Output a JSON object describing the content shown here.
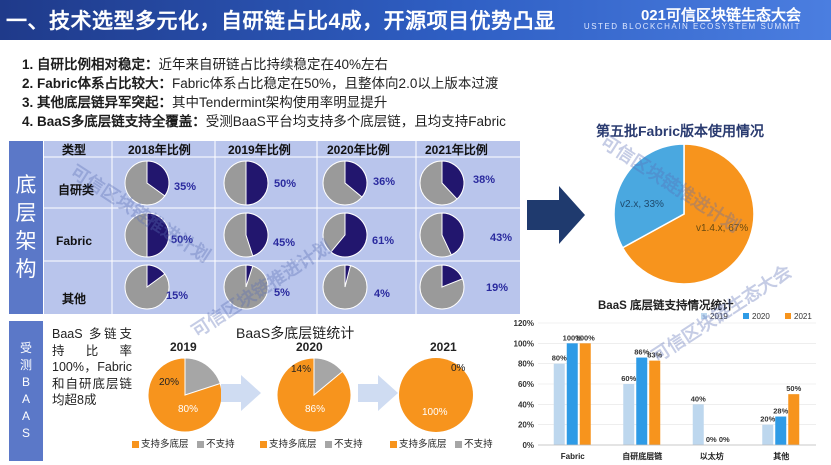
{
  "header": {
    "title": "一、技术选型多元化，自研链占比4成，开源项目优势凸显",
    "brand": "021可信区块链生态大会",
    "brand_en": "USTED BLOCKCHAIN ECOSYSTEM SUMMIT"
  },
  "bullets": [
    {
      "key": "1. 自研比例相对稳定：",
      "text": "近年来自研链占比持续稳定在40%左右"
    },
    {
      "key": "2. Fabric体系占比较大：",
      "text": "Fabric体系占比稳定在50%，且整体向2.0以上版本过渡"
    },
    {
      "key": "3. 其他底层链异军突起：",
      "text": "其中Tendermint架构使用率明显提升"
    },
    {
      "key": "4. BaaS多底层链支持全覆盖：",
      "text": "受测BaaS平台均支持多个底层链，且均支持Fabric"
    }
  ],
  "arch": {
    "label": [
      "底",
      "层",
      "架",
      "构"
    ],
    "type_header": "类型",
    "columns": [
      "2018年比例",
      "2019年比例",
      "2020年比例",
      "2021年比例"
    ],
    "rows": [
      {
        "name": "自研类",
        "values": [
          "35%",
          "50%",
          "36%",
          "38%"
        ],
        "fractions": [
          0.35,
          0.5,
          0.36,
          0.38
        ]
      },
      {
        "name": "Fabric",
        "values": [
          "50%",
          "45%",
          "61%",
          "43%"
        ],
        "fractions": [
          0.5,
          0.45,
          0.61,
          0.43
        ]
      },
      {
        "name": "其他",
        "values": [
          "15%",
          "5%",
          "4%",
          "19%"
        ],
        "fractions": [
          0.15,
          0.05,
          0.04,
          0.19
        ]
      }
    ],
    "colors": {
      "fill": "#22166e",
      "rest": "#9a9a9a"
    }
  },
  "fabric_pie": {
    "title": "第五批Fabric版本使用情况",
    "slices": [
      {
        "label": "v1.4.x, 67%",
        "value": 67,
        "color": "#f7941d"
      },
      {
        "label": "v2.x, 33%",
        "value": 33,
        "color": "#4aa8e0"
      }
    ]
  },
  "baas": {
    "label": [
      "受",
      "测",
      "B",
      "A",
      "A",
      "S"
    ],
    "text": "BaaS 多链支持比率100%，Fabric和自研底层链均超8成",
    "title": "BaaS多底层链统计",
    "pies": [
      {
        "year": "2019",
        "support": 80,
        "no": 20,
        "support_label": "80%",
        "no_label": "20%"
      },
      {
        "year": "2020",
        "support": 86,
        "no": 14,
        "support_label": "86%",
        "no_label": "14%"
      },
      {
        "year": "2021",
        "support": 100,
        "no": 0,
        "support_label": "100%",
        "no_label": "0%"
      }
    ],
    "legend": {
      "support": "支持多底层",
      "no": "不支持"
    },
    "colors": {
      "support": "#f7941d",
      "no": "#a6a6a6"
    }
  },
  "chart_data": {
    "type": "bar",
    "title": "BaaS 底层链支持情况统计",
    "categories": [
      "Fabric",
      "自研底层链",
      "以太坊",
      "其他"
    ],
    "series": [
      {
        "name": "2019",
        "values": [
          80,
          60,
          40,
          20
        ],
        "labels": [
          "80%",
          "60%",
          "40%",
          "20%"
        ],
        "color": "#bdd7ee"
      },
      {
        "name": "2020",
        "values": [
          100,
          86,
          0,
          28
        ],
        "labels": [
          "100%",
          "86%",
          "0%",
          "28%"
        ],
        "color": "#2e9be6"
      },
      {
        "name": "2021",
        "values": [
          100,
          83,
          0,
          50
        ],
        "labels": [
          "100%",
          "83%",
          "0%",
          "50%"
        ],
        "color": "#f7941d"
      }
    ],
    "yticks": [
      "0%",
      "20%",
      "40%",
      "60%",
      "80%",
      "100%",
      "120%"
    ],
    "ylim": [
      0,
      120
    ],
    "legend_position": "top-right"
  },
  "watermarks": [
    "可信区块链推进计划",
    "可信区块链推进计划",
    "可信区块链推进计划",
    "可信区块链生态大会"
  ]
}
